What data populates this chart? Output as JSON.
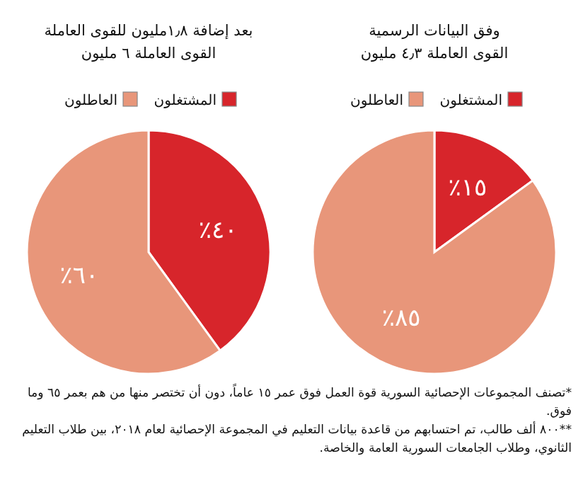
{
  "chart_data": [
    {
      "type": "pie",
      "title": "وفق البيانات الرسمية",
      "subtitle": "القوى العاملة ٤٫٣ مليون",
      "categories": [
        "المشتغلون",
        "العاطلون"
      ],
      "values": [
        15,
        85
      ],
      "colors": [
        "#d7252b",
        "#e8967a"
      ],
      "value_labels": [
        "٪١٥",
        "٪٨٥"
      ],
      "legend": "top"
    },
    {
      "type": "pie",
      "title": "بعد إضافة ١٫٨مليون للقوى العاملة",
      "subtitle": "القوى العاملة ٦ مليون",
      "categories": [
        "المشتغلون",
        "العاطلون"
      ],
      "values": [
        40,
        60
      ],
      "colors": [
        "#d7252b",
        "#e8967a"
      ],
      "value_labels": [
        "٪٤٠",
        "٪٦٠"
      ],
      "legend": "top",
      "annotations": [
        "*تصنف المجموعات الإحصائية السورية قوة العمل فوق عمر ١٥ عاماً، دون أن تختصر منها من هم بعمر ٦٥ وما فوق.",
        "**٨٠٠ ألف طالب، تم احتسابهم من قاعدة بيانات التعليم في المجموعة الإحصائية لعام ٢٠١٨، بين طلاب التعليم الثانوي، وطلاب الجامعات السورية العامة والخاصة."
      ]
    }
  ]
}
